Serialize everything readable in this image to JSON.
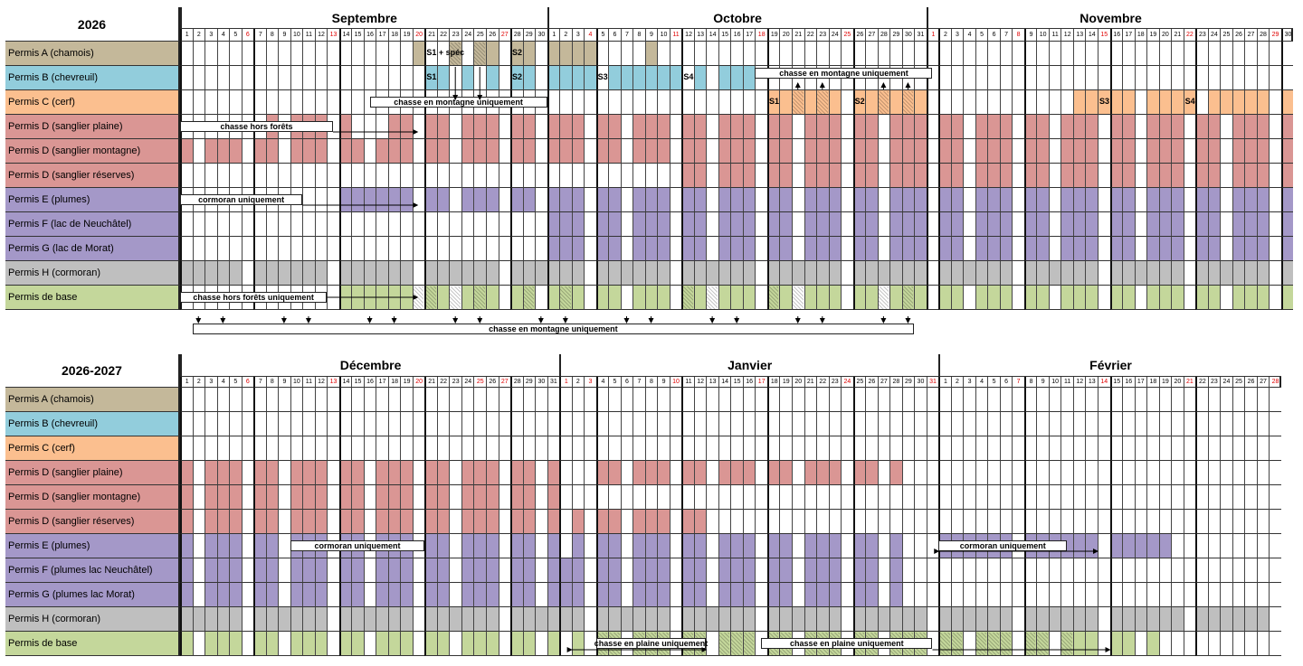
{
  "colors": {
    "A": "#c4b89a",
    "B": "#92cddc",
    "C": "#fbbf8f",
    "D": "#da9694",
    "E": "#a498c8",
    "F": "#a498c8",
    "G": "#a498c8",
    "H": "#bfbfbf",
    "base": "#c4d79b",
    "weekend": "#e00000"
  },
  "tables": [
    {
      "year": "2026",
      "months": [
        {
          "name": "Septembre",
          "days": 30,
          "red_days": [
            6,
            13,
            20,
            27
          ]
        },
        {
          "name": "Octobre",
          "days": 31,
          "red_days": [
            4,
            11,
            18,
            25
          ]
        },
        {
          "name": "Novembre",
          "days": 30,
          "red_days": [
            1,
            8,
            15,
            22,
            29
          ]
        }
      ],
      "rows": [
        "Permis A (chamois)",
        "Permis B (chevreuil)",
        "Permis C (cerf)",
        "Permis D (sanglier plaine)",
        "Permis D (sanglier montagne)",
        "Permis D (sanglier réserves)",
        "Permis E (plumes)",
        "Permis F (lac de Neuchâtel)",
        "Permis G (lac de Morat)",
        "Permis H (cormoran)",
        "Permis de base"
      ],
      "notes": {
        "montagne_top": "chasse en montagne uniquement",
        "hors_forets": "chasse hors forêts",
        "cormoran": "cormoran uniquement",
        "hors_forets_base": "chasse hors forêts uniquement",
        "montagne_oct": "chasse en montagne uniquement",
        "montagne_bottom": "chasse en montagne uniquement"
      },
      "sessions": {
        "a1": "S1 + spéc",
        "a2": "S2",
        "b1": "S1",
        "b2": "S2",
        "b3": "S3",
        "b4": "S4",
        "c1": "S1",
        "c2": "S2",
        "c3": "S3",
        "c4": "S4"
      }
    },
    {
      "year": "2026-2027",
      "months": [
        {
          "name": "Décembre",
          "days": 31,
          "red_days": [
            6,
            13,
            20,
            25,
            27
          ]
        },
        {
          "name": "Janvier",
          "days": 31,
          "red_days": [
            1,
            3,
            10,
            17,
            24,
            31
          ]
        },
        {
          "name": "Février",
          "days": 28,
          "red_days": [
            7,
            14,
            21,
            28
          ]
        }
      ],
      "rows": [
        "Permis A (chamois)",
        "Permis B (chevreuil)",
        "Permis C (cerf)",
        "Permis D (sanglier plaine)",
        "Permis D (sanglier montagne)",
        "Permis D (sanglier réserves)",
        "Permis E (plumes)",
        "Permis F (plumes lac Neuchâtel)",
        "Permis G (plumes lac Morat)",
        "Permis H (cormoran)",
        "Permis de base"
      ],
      "notes": {
        "cormoran_feb": "cormoran uniquement",
        "plaine": "chasse en plaine uniquement"
      }
    }
  ]
}
